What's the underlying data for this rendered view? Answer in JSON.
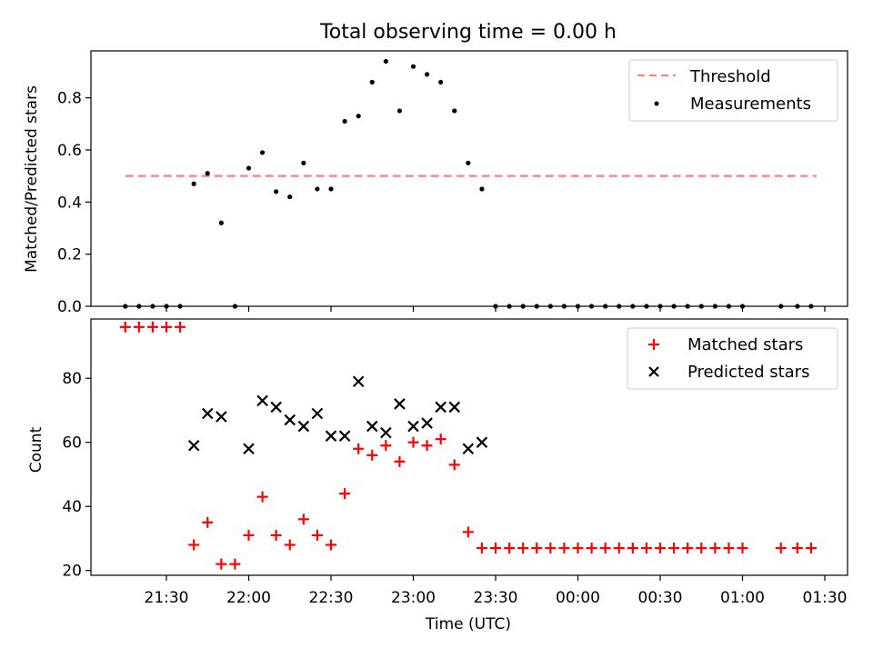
{
  "title": "Total observing time = 0.00 h",
  "chart_data": [
    {
      "type": "scatter",
      "ylabel": "Matched/Predicted stars",
      "xlabel": "",
      "ylim": [
        0,
        0.98
      ],
      "yticks": [
        0.0,
        0.2,
        0.4,
        0.6,
        0.8
      ],
      "ytick_labels": [
        "0.0",
        "0.2",
        "0.4",
        "0.6",
        "0.8"
      ],
      "legend_position": "top-right",
      "threshold": {
        "name": "Threshold",
        "value": 0.5,
        "x_start": "21:15",
        "x_end": "01:27",
        "color": "#ff7f7f"
      },
      "series": [
        {
          "name": "Measurements",
          "color": "#000000",
          "x": [
            "21:15",
            "21:20",
            "21:25",
            "21:30",
            "21:35",
            "21:40",
            "21:45",
            "21:50",
            "21:55",
            "22:00",
            "22:05",
            "22:10",
            "22:15",
            "22:20",
            "22:25",
            "22:30",
            "22:35",
            "22:40",
            "22:45",
            "22:50",
            "22:55",
            "23:00",
            "23:05",
            "23:10",
            "23:15",
            "23:20",
            "23:25",
            "23:30",
            "23:35",
            "23:40",
            "23:45",
            "23:50",
            "23:55",
            "00:00",
            "00:05",
            "00:10",
            "00:15",
            "00:20",
            "00:25",
            "00:30",
            "00:35",
            "00:40",
            "00:45",
            "00:50",
            "00:55",
            "01:00",
            "01:14",
            "01:20",
            "01:25"
          ],
          "y": [
            0,
            0,
            0,
            0,
            0,
            0.47,
            0.51,
            0.32,
            0,
            0.53,
            0.59,
            0.44,
            0.42,
            0.55,
            0.45,
            0.45,
            0.71,
            0.73,
            0.86,
            0.94,
            0.75,
            0.92,
            0.89,
            0.86,
            0.75,
            0.55,
            0.45,
            0,
            0,
            0,
            0,
            0,
            0,
            0,
            0,
            0,
            0,
            0,
            0,
            0,
            0,
            0,
            0,
            0,
            0,
            0,
            0,
            0,
            0
          ]
        }
      ]
    },
    {
      "type": "scatter",
      "ylabel": "Count",
      "xlabel": "Time (UTC)",
      "ylim": [
        18.5,
        98.5
      ],
      "yticks": [
        20,
        40,
        60,
        80
      ],
      "ytick_labels": [
        "20",
        "40",
        "60",
        "80"
      ],
      "x_ticks": [
        "21:30",
        "22:00",
        "22:30",
        "23:00",
        "23:30",
        "00:00",
        "00:30",
        "01:00",
        "01:30"
      ],
      "legend_position": "top-right",
      "series": [
        {
          "name": "Matched stars",
          "marker": "+",
          "color": "#ff0000",
          "x": [
            "21:15",
            "21:20",
            "21:25",
            "21:30",
            "21:35",
            "21:40",
            "21:45",
            "21:50",
            "21:55",
            "22:00",
            "22:05",
            "22:10",
            "22:15",
            "22:20",
            "22:25",
            "22:30",
            "22:35",
            "22:40",
            "22:45",
            "22:50",
            "22:55",
            "23:00",
            "23:05",
            "23:10",
            "23:15",
            "23:20",
            "23:25",
            "23:30",
            "23:35",
            "23:40",
            "23:45",
            "23:50",
            "23:55",
            "00:00",
            "00:05",
            "00:10",
            "00:15",
            "00:20",
            "00:25",
            "00:30",
            "00:35",
            "00:40",
            "00:45",
            "00:50",
            "00:55",
            "01:00",
            "01:14",
            "01:20",
            "01:25"
          ],
          "y": [
            96,
            96,
            96,
            96,
            96,
            28,
            35,
            22,
            22,
            31,
            43,
            31,
            28,
            36,
            31,
            28,
            44,
            58,
            56,
            59,
            54,
            60,
            59,
            61,
            53,
            32,
            27,
            27,
            27,
            27,
            27,
            27,
            27,
            27,
            27,
            27,
            27,
            27,
            27,
            27,
            27,
            27,
            27,
            27,
            27,
            27,
            27,
            27,
            27
          ]
        },
        {
          "name": "Predicted stars",
          "marker": "x",
          "color": "#000000",
          "x": [
            "21:40",
            "21:45",
            "21:50",
            "22:00",
            "22:05",
            "22:10",
            "22:15",
            "22:20",
            "22:25",
            "22:30",
            "22:35",
            "22:40",
            "22:45",
            "22:50",
            "22:55",
            "23:00",
            "23:05",
            "23:10",
            "23:15",
            "23:20",
            "23:25"
          ],
          "y": [
            59,
            69,
            68,
            58,
            73,
            71,
            67,
            65,
            69,
            62,
            62,
            79,
            65,
            63,
            72,
            65,
            66,
            71,
            71,
            58,
            60
          ]
        }
      ]
    }
  ]
}
